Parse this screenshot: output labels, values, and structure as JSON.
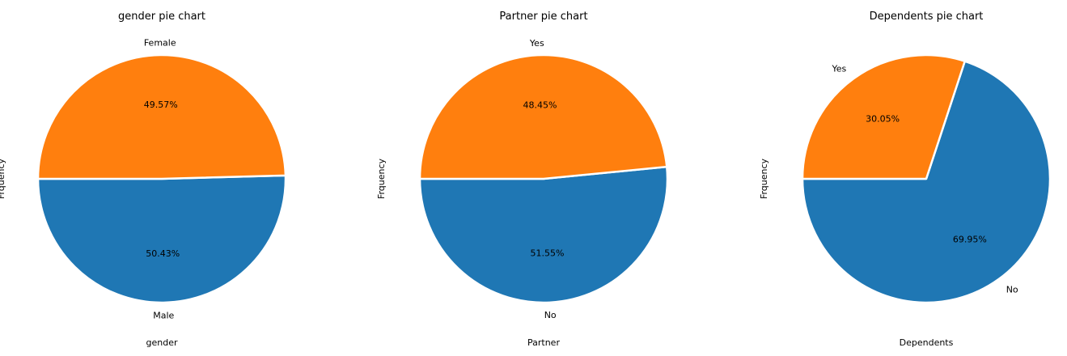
{
  "chart_data": [
    {
      "type": "pie",
      "title": "gender pie chart",
      "xlabel": "gender",
      "ylabel": "Frquency",
      "categories": [
        "Male",
        "Female"
      ],
      "values": [
        50.43,
        49.57
      ],
      "labels": [
        "Male",
        "Female"
      ],
      "percent_labels": [
        "50.43%",
        "49.57%"
      ],
      "colors": [
        "#1f77b4",
        "#ff7f0e"
      ],
      "start_angle_deg": 180,
      "direction": "counterclockwise"
    },
    {
      "type": "pie",
      "title": "Partner pie chart",
      "xlabel": "Partner",
      "ylabel": "Frquency",
      "categories": [
        "No",
        "Yes"
      ],
      "values": [
        51.55,
        48.45
      ],
      "labels": [
        "No",
        "Yes"
      ],
      "percent_labels": [
        "51.55%",
        "48.45%"
      ],
      "colors": [
        "#1f77b4",
        "#ff7f0e"
      ],
      "start_angle_deg": 180,
      "direction": "counterclockwise"
    },
    {
      "type": "pie",
      "title": "Dependents pie chart",
      "xlabel": "Dependents",
      "ylabel": "Frquency",
      "categories": [
        "No",
        "Yes"
      ],
      "values": [
        69.95,
        30.05
      ],
      "labels": [
        "No",
        "Yes"
      ],
      "percent_labels": [
        "69.95%",
        "30.05%"
      ],
      "colors": [
        "#1f77b4",
        "#ff7f0e"
      ],
      "start_angle_deg": 180,
      "direction": "counterclockwise"
    }
  ]
}
